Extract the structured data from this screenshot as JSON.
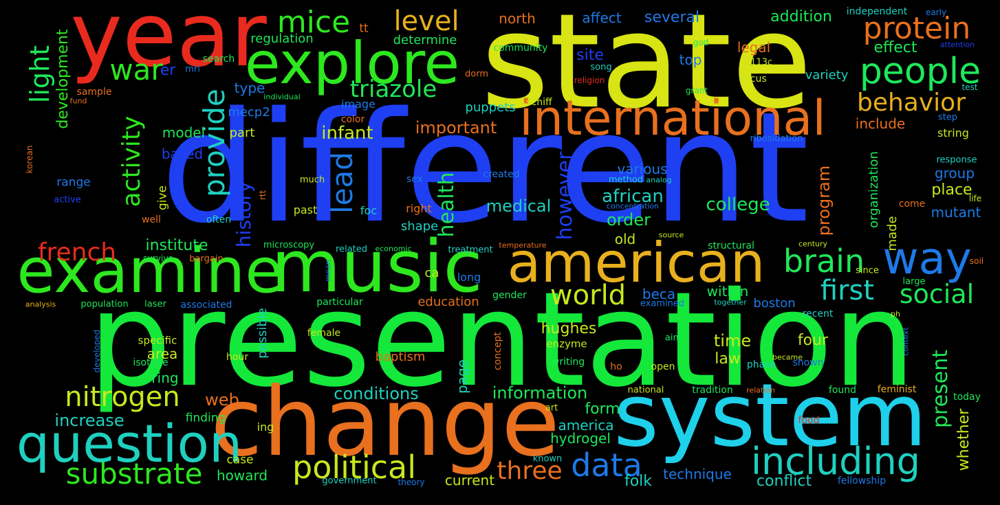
{
  "words": [
    {
      "text": "different",
      "color": "#1e3ff2"
    },
    {
      "text": "presentation",
      "color": "#14e83a"
    },
    {
      "text": "state",
      "color": "#d8e413"
    },
    {
      "text": "change",
      "color": "#e8701e"
    },
    {
      "text": "system",
      "color": "#1fd0ea"
    },
    {
      "text": "year",
      "color": "#e82b1e"
    },
    {
      "text": "music",
      "color": "#2de81e"
    },
    {
      "text": "examine",
      "color": "#2de81e"
    },
    {
      "text": "explore",
      "color": "#2de81e"
    },
    {
      "text": "american",
      "color": "#e8b01e"
    },
    {
      "text": "international",
      "color": "#e8701e"
    },
    {
      "text": "question",
      "color": "#1fd0c0"
    },
    {
      "text": "way",
      "color": "#1e7ae8"
    },
    {
      "text": "people",
      "color": "#1ee85a"
    },
    {
      "text": "protein",
      "color": "#e8701e"
    },
    {
      "text": "brain",
      "color": "#1ee85a"
    },
    {
      "text": "including",
      "color": "#1fd0c0"
    },
    {
      "text": "political",
      "color": "#c8e81e"
    },
    {
      "text": "substrate",
      "color": "#2de81e"
    },
    {
      "text": "nitrogen",
      "color": "#c8e81e"
    },
    {
      "text": "data",
      "color": "#1e7ae8"
    },
    {
      "text": "first",
      "color": "#1fd0c0"
    },
    {
      "text": "social",
      "color": "#1ee85a"
    },
    {
      "text": "world",
      "color": "#c8e81e"
    },
    {
      "text": "behavior",
      "color": "#e8b01e"
    },
    {
      "text": "mice",
      "color": "#2de81e"
    },
    {
      "text": "level",
      "color": "#e8b01e"
    },
    {
      "text": "war",
      "color": "#2de81e"
    },
    {
      "text": "triazole",
      "color": "#1ee85a"
    },
    {
      "text": "three",
      "color": "#e8701e"
    },
    {
      "text": "french",
      "color": "#e82b1e"
    },
    {
      "text": "provide",
      "color": "#1fd0c0"
    },
    {
      "text": "light",
      "color": "#1ee85a"
    },
    {
      "text": "activity",
      "color": "#2de81e"
    },
    {
      "text": "lead",
      "color": "#1e7ae8"
    },
    {
      "text": "history",
      "color": "#1e3ff2"
    },
    {
      "text": "health",
      "color": "#1ee85a"
    },
    {
      "text": "however",
      "color": "#1e3ff2"
    },
    {
      "text": "present",
      "color": "#1ee85a"
    },
    {
      "text": "development",
      "color": "#2de81e"
    },
    {
      "text": "infant",
      "color": "#c8e81e"
    },
    {
      "text": "important",
      "color": "#e8701e"
    },
    {
      "text": "african",
      "color": "#1fd0c0"
    },
    {
      "text": "college",
      "color": "#1ee85a"
    },
    {
      "text": "medical",
      "color": "#1fd0c0"
    },
    {
      "text": "order",
      "color": "#1ee85a"
    },
    {
      "text": "institute",
      "color": "#1ee85a"
    },
    {
      "text": "increase",
      "color": "#1fd0c0"
    },
    {
      "text": "conditions",
      "color": "#1fd0c0"
    },
    {
      "text": "information",
      "color": "#1ee85a"
    },
    {
      "text": "web",
      "color": "#e8701e"
    },
    {
      "text": "time",
      "color": "#c8e81e"
    },
    {
      "text": "law",
      "color": "#c8e81e"
    },
    {
      "text": "four",
      "color": "#c8e81e"
    },
    {
      "text": "hughes",
      "color": "#c8e81e"
    },
    {
      "text": "form",
      "color": "#1ee85a"
    },
    {
      "text": "america",
      "color": "#1fd0c0"
    },
    {
      "text": "hydrogel",
      "color": "#1ee85a"
    },
    {
      "text": "folk",
      "color": "#1fd0c0"
    },
    {
      "text": "technique",
      "color": "#1e7ae8"
    },
    {
      "text": "conflict",
      "color": "#1fd0c0"
    },
    {
      "text": "howard",
      "color": "#1ee85a"
    },
    {
      "text": "current",
      "color": "#c8e81e"
    },
    {
      "text": "program",
      "color": "#e8701e"
    },
    {
      "text": "whether",
      "color": "#c8e81e"
    },
    {
      "text": "organization",
      "color": "#1ee85a"
    },
    {
      "text": "made",
      "color": "#c8e81e"
    },
    {
      "text": "group",
      "color": "#1e7ae8"
    },
    {
      "text": "place",
      "color": "#c8e81e"
    },
    {
      "text": "mutant",
      "color": "#1e7ae8"
    },
    {
      "text": "include",
      "color": "#e8701e"
    },
    {
      "text": "effect",
      "color": "#1ee85a"
    },
    {
      "text": "addition",
      "color": "#1ee85a"
    },
    {
      "text": "north",
      "color": "#e8701e"
    },
    {
      "text": "affect",
      "color": "#1e7ae8"
    },
    {
      "text": "several",
      "color": "#1e7ae8"
    },
    {
      "text": "site",
      "color": "#1e3ff2"
    },
    {
      "text": "top",
      "color": "#1e7ae8"
    },
    {
      "text": "legal",
      "color": "#e8701e"
    },
    {
      "text": "determine",
      "color": "#1ee85a"
    },
    {
      "text": "regulation",
      "color": "#1ee85a"
    },
    {
      "text": "type",
      "color": "#1e7ae8"
    },
    {
      "text": "model",
      "color": "#1ee85a"
    },
    {
      "text": "based",
      "color": "#1e3ff2"
    },
    {
      "text": "part",
      "color": "#c8e81e"
    },
    {
      "text": "mecp2",
      "color": "#1e7ae8"
    },
    {
      "text": "puppets",
      "color": "#1fd0c0"
    },
    {
      "text": "various",
      "color": "#1e7ae8"
    },
    {
      "text": "old",
      "color": "#c8e81e"
    },
    {
      "text": "shape",
      "color": "#1fd0c0"
    },
    {
      "text": "beca",
      "color": "#1e7ae8"
    },
    {
      "text": "within",
      "color": "#1ee85a"
    },
    {
      "text": "boston",
      "color": "#1e7ae8"
    },
    {
      "text": "education",
      "color": "#e8701e"
    },
    {
      "text": "area",
      "color": "#c8e81e"
    },
    {
      "text": "ring",
      "color": "#1ee85a"
    },
    {
      "text": "baptism",
      "color": "#e8701e"
    },
    {
      "text": "page",
      "color": "#1fd0c0"
    },
    {
      "text": "possible",
      "color": "#1fd0c0"
    },
    {
      "text": "range",
      "color": "#1e7ae8"
    },
    {
      "text": "give",
      "color": "#c8e81e"
    },
    {
      "text": "variety",
      "color": "#1fd0c0"
    },
    {
      "text": "string",
      "color": "#c8e81e"
    },
    {
      "text": "tt",
      "color": "#e8701e"
    },
    {
      "text": "er",
      "color": "#1e3ff2"
    },
    {
      "text": "ca",
      "color": "#c8e81e"
    },
    {
      "text": "finding",
      "color": "#1ee85a"
    },
    {
      "text": "ing",
      "color": "#c8e81e"
    },
    {
      "text": "case",
      "color": "#c8e81e"
    },
    {
      "text": "long",
      "color": "#1e7ae8"
    },
    {
      "text": "past",
      "color": "#c8e81e"
    },
    {
      "text": "foc",
      "color": "#1fd0c0"
    },
    {
      "text": "right",
      "color": "#e8701e"
    },
    {
      "text": "specific",
      "color": "#c8e81e"
    },
    {
      "text": "enzyme",
      "color": "#c8e81e"
    },
    {
      "text": "community",
      "color": "#1ee85a"
    },
    {
      "text": "search",
      "color": "#1ee85a"
    },
    {
      "text": "mri",
      "color": "#1e7ae8"
    },
    {
      "text": "sample",
      "color": "#e8701e"
    },
    {
      "text": "individual",
      "color": "#1ee85a"
    },
    {
      "text": "fund",
      "color": "#e8701e"
    },
    {
      "text": "image",
      "color": "#1e7ae8"
    },
    {
      "text": "color",
      "color": "#e8701e"
    },
    {
      "text": "dorm",
      "color": "#e8701e"
    },
    {
      "text": "song",
      "color": "#1fd0c0"
    },
    {
      "text": "religion",
      "color": "#e82b1e"
    },
    {
      "text": "god",
      "color": "#1ee85a"
    },
    {
      "text": "1113c",
      "color": "#c8e81e"
    },
    {
      "text": "focus",
      "color": "#c8e81e"
    },
    {
      "text": "grant",
      "color": "#1ee85a"
    },
    {
      "text": "schiff",
      "color": "#c8e81e"
    },
    {
      "text": "independent",
      "color": "#1fd0c0"
    },
    {
      "text": "early",
      "color": "#1e7ae8"
    },
    {
      "text": "attention",
      "color": "#1e3ff2"
    },
    {
      "text": "test",
      "color": "#1fd0c0"
    },
    {
      "text": "step",
      "color": "#1e7ae8"
    },
    {
      "text": "ribosidation",
      "color": "#1e7ae8"
    },
    {
      "text": "response",
      "color": "#1fd0c0"
    },
    {
      "text": "created",
      "color": "#1e7ae8"
    },
    {
      "text": "analog",
      "color": "#1fd0c0"
    },
    {
      "text": "method",
      "color": "#1fd0c0"
    },
    {
      "text": "concentration",
      "color": "#1e7ae8"
    },
    {
      "text": "much",
      "color": "#c8e81e"
    },
    {
      "text": "sex",
      "color": "#1e7ae8"
    },
    {
      "text": "rtt",
      "color": "#e8701e"
    },
    {
      "text": "often",
      "color": "#1fd0c0"
    },
    {
      "text": "well",
      "color": "#e8701e"
    },
    {
      "text": "active",
      "color": "#1e3ff2"
    },
    {
      "text": "korean",
      "color": "#e8701e"
    },
    {
      "text": "microscopy",
      "color": "#1ee85a"
    },
    {
      "text": "related",
      "color": "#1fd0c0"
    },
    {
      "text": "economic",
      "color": "#1ee85a"
    },
    {
      "text": "treatment",
      "color": "#1fd0c0"
    },
    {
      "text": "temperature",
      "color": "#e8701e"
    },
    {
      "text": "source",
      "color": "#c8e81e"
    },
    {
      "text": "structural",
      "color": "#1ee85a"
    },
    {
      "text": "century",
      "color": "#c8e81e"
    },
    {
      "text": "come",
      "color": "#e8701e"
    },
    {
      "text": "life",
      "color": "#c8e81e"
    },
    {
      "text": "soil",
      "color": "#e8701e"
    },
    {
      "text": "survive",
      "color": "#1ee85a"
    },
    {
      "text": "bargain",
      "color": "#e8701e"
    },
    {
      "text": "mean",
      "color": "#1e7ae8"
    },
    {
      "text": "particular",
      "color": "#1ee85a"
    },
    {
      "text": "gender",
      "color": "#1ee85a"
    },
    {
      "text": "examined",
      "color": "#1e7ae8"
    },
    {
      "text": "together",
      "color": "#1fd0c0"
    },
    {
      "text": "since",
      "color": "#c8e81e"
    },
    {
      "text": "large",
      "color": "#1ee85a"
    },
    {
      "text": "recent",
      "color": "#1fd0c0"
    },
    {
      "text": "ph",
      "color": "#c8e81e"
    },
    {
      "text": "context",
      "color": "#1e7ae8"
    },
    {
      "text": "analysis",
      "color": "#e8b01e"
    },
    {
      "text": "population",
      "color": "#1ee85a"
    },
    {
      "text": "laser",
      "color": "#1ee85a"
    },
    {
      "text": "associated",
      "color": "#1e7ae8"
    },
    {
      "text": "female",
      "color": "#c8e81e"
    },
    {
      "text": "concept",
      "color": "#e8701e"
    },
    {
      "text": "aim",
      "color": "#1ee85a"
    },
    {
      "text": "became",
      "color": "#c8e81e"
    },
    {
      "text": "developed",
      "color": "#1e7ae8"
    },
    {
      "text": "isotope",
      "color": "#1ee85a"
    },
    {
      "text": "hour",
      "color": "#c8e81e"
    },
    {
      "text": "writing",
      "color": "#1ee85a"
    },
    {
      "text": "ho",
      "color": "#e8701e"
    },
    {
      "text": "open",
      "color": "#c8e81e"
    },
    {
      "text": "phase",
      "color": "#1fd0c0"
    },
    {
      "text": "shown",
      "color": "#1e7ae8"
    },
    {
      "text": "art",
      "color": "#c8e81e"
    },
    {
      "text": "national",
      "color": "#c8e81e"
    },
    {
      "text": "tradition",
      "color": "#1ee85a"
    },
    {
      "text": "relation",
      "color": "#e8701e"
    },
    {
      "text": "found",
      "color": "#1ee85a"
    },
    {
      "text": "feminist",
      "color": "#e8b01e"
    },
    {
      "text": "today",
      "color": "#1ee85a"
    },
    {
      "text": "food",
      "color": "#e82b1e"
    },
    {
      "text": "known",
      "color": "#1fd0c0"
    },
    {
      "text": "government",
      "color": "#1fd0c0"
    },
    {
      "text": "theory",
      "color": "#1e7ae8"
    },
    {
      "text": "fellowship",
      "color": "#1e7ae8"
    }
  ]
}
